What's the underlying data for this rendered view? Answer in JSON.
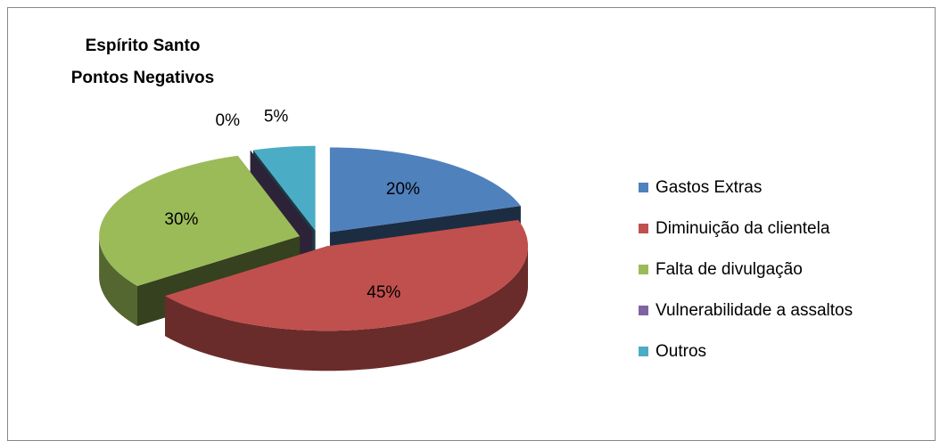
{
  "chart_data": {
    "type": "pie3d",
    "title": [
      "Espírito Santo",
      "Pontos Negativos"
    ],
    "categories": [
      "Gastos Extras",
      "Diminuição da clientela",
      "Falta de divulgação",
      "Vulnerabilidade a assaltos",
      "Outros"
    ],
    "values": [
      20,
      45,
      30,
      0,
      5
    ],
    "value_labels": [
      "20%",
      "45%",
      "30%",
      "0%",
      "5%"
    ],
    "colors": [
      "#4f81bd",
      "#c0504d",
      "#9bbb59",
      "#8064a2",
      "#4bacc6"
    ],
    "legend": "right"
  }
}
